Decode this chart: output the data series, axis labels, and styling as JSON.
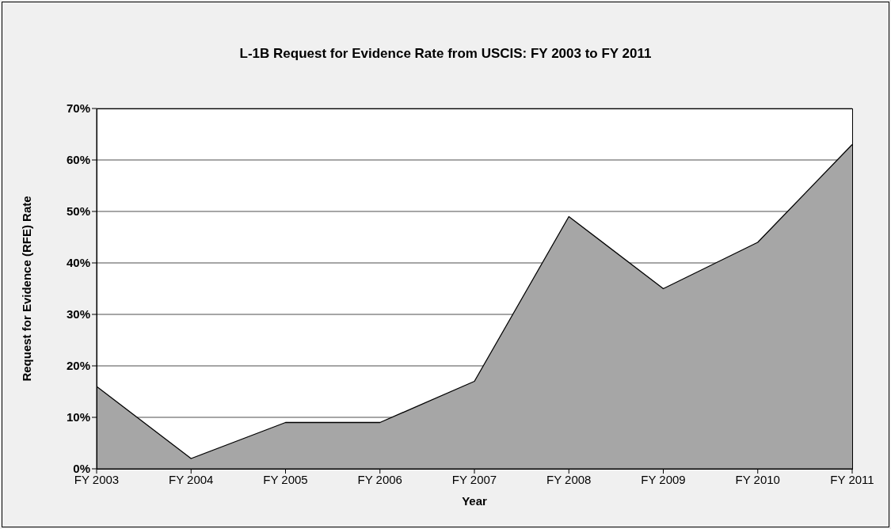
{
  "chart_data": {
    "type": "area",
    "title": "L-1B Request for Evidence Rate from USCIS: FY 2003 to FY 2011",
    "xlabel": "Year",
    "ylabel": "Request for Evidence (RFE) Rate",
    "categories": [
      "FY 2003",
      "FY 2004",
      "FY 2005",
      "FY 2006",
      "FY 2007",
      "FY 2008",
      "FY 2009",
      "FY 2010",
      "FY 2011"
    ],
    "values": [
      16,
      2,
      9,
      9,
      17,
      49,
      35,
      44,
      63
    ],
    "color": "#a6a6a6",
    "ylim": [
      0,
      70
    ],
    "yticks": [
      {
        "value": 0,
        "label": "0%"
      },
      {
        "value": 10,
        "label": "10%"
      },
      {
        "value": 20,
        "label": "20%"
      },
      {
        "value": 30,
        "label": "30%"
      },
      {
        "value": 40,
        "label": "40%"
      },
      {
        "value": 50,
        "label": "50%"
      },
      {
        "value": 60,
        "label": "60%"
      },
      {
        "value": 70,
        "label": "70%"
      }
    ],
    "grid": "y"
  }
}
